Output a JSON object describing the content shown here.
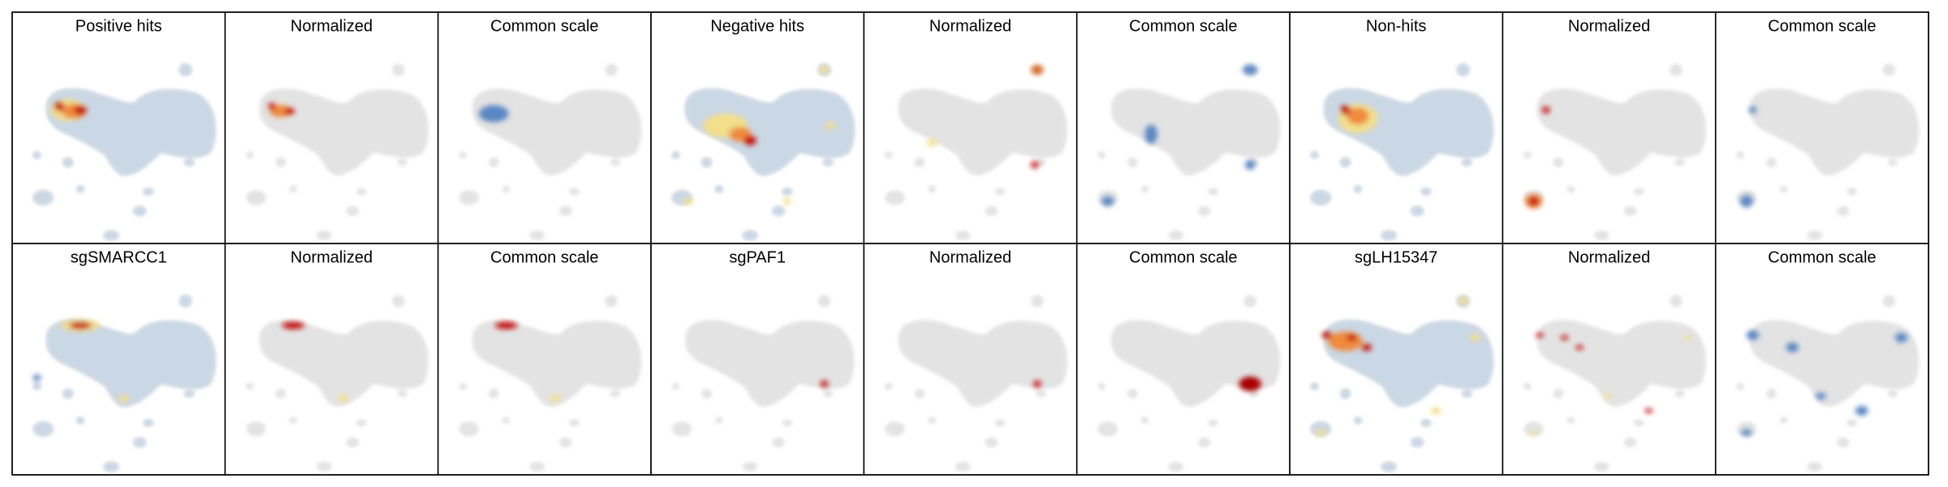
{
  "rows": [
    [
      "Positive hits",
      "Normalized",
      "Common scale",
      "Negative hits",
      "Normalized",
      "Common scale",
      "Non-hits",
      "Normalized",
      "Common scale"
    ],
    [
      "sgSMARCC1",
      "Normalized",
      "Common scale",
      "sgPAF1",
      "Normalized",
      "Common scale",
      "sgLH15347",
      "Normalized",
      "Common scale"
    ]
  ]
}
